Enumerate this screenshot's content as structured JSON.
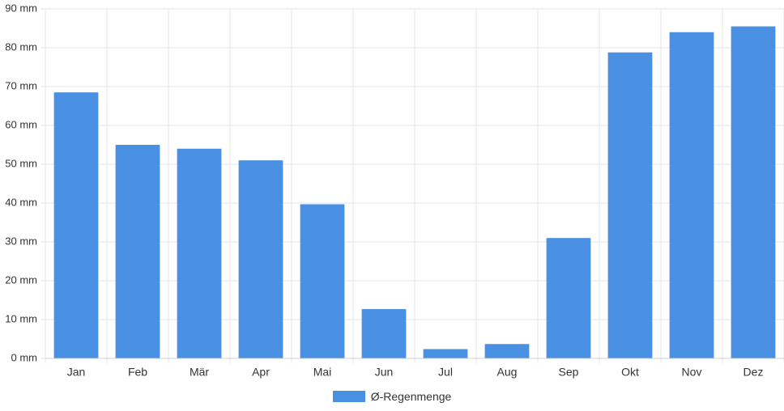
{
  "chart_data": {
    "type": "bar",
    "categories": [
      "Jan",
      "Feb",
      "Mär",
      "Apr",
      "Mai",
      "Jun",
      "Jul",
      "Aug",
      "Sep",
      "Okt",
      "Nov",
      "Dez"
    ],
    "series": [
      {
        "name": "Ø-Regenmenge",
        "color": "#4a90e2",
        "values": [
          68.5,
          55,
          54,
          51,
          39.7,
          12.7,
          2.4,
          3.7,
          31,
          78.8,
          84,
          85.5
        ]
      }
    ],
    "y_unit": "mm",
    "ylim": [
      0,
      90
    ],
    "yticks": [
      0,
      10,
      20,
      30,
      40,
      50,
      60,
      70,
      80,
      90
    ],
    "grid": true,
    "legend_position": "bottom"
  }
}
